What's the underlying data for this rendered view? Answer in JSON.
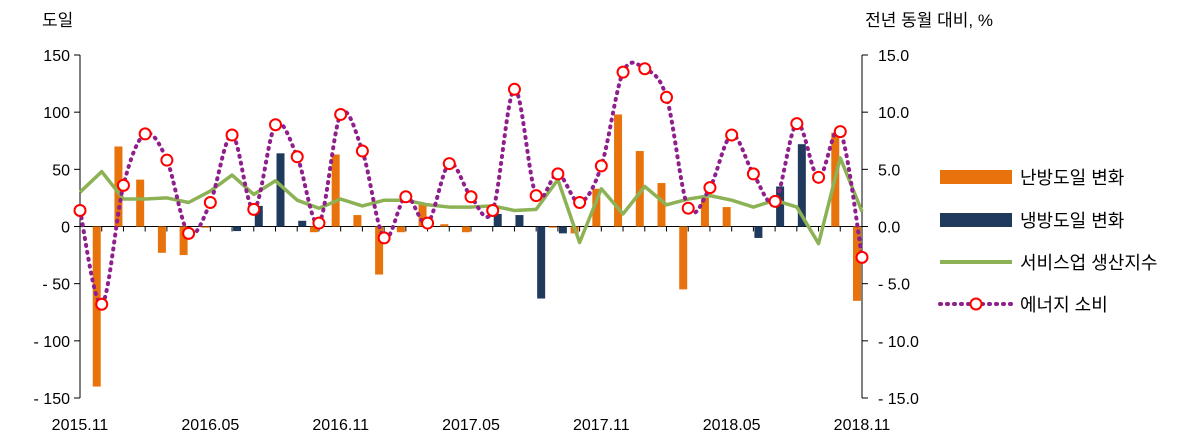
{
  "chart_data": {
    "type": "bar",
    "left_unit": "도일",
    "right_unit": "전년 동월 대비, %",
    "y_left": {
      "min": -150,
      "max": 150,
      "ticks": [
        150,
        100,
        50,
        0,
        -50,
        -100,
        -150
      ],
      "tick_labels": [
        "150",
        "100",
        "50",
        "0",
        "- 50",
        "- 100",
        "- 150"
      ]
    },
    "y_right": {
      "min": -15,
      "max": 15,
      "ticks": [
        15,
        10,
        5,
        0,
        -5,
        -10,
        -15
      ],
      "tick_labels": [
        "15.0",
        "10.0",
        "5.0",
        "0.0",
        "- 5.0",
        "- 10.0",
        "- 15.0"
      ]
    },
    "x_tick_labels": [
      {
        "index": 0,
        "label": "2015.11"
      },
      {
        "index": 6,
        "label": "2016.05"
      },
      {
        "index": 12,
        "label": "2016.11"
      },
      {
        "index": 18,
        "label": "2017.05"
      },
      {
        "index": 24,
        "label": "2017.11"
      },
      {
        "index": 30,
        "label": "2018.05"
      },
      {
        "index": 36,
        "label": "2018.11"
      }
    ],
    "categories": [
      "2015.11",
      "2015.12",
      "2016.01",
      "2016.02",
      "2016.03",
      "2016.04",
      "2016.05",
      "2016.06",
      "2016.07",
      "2016.08",
      "2016.09",
      "2016.10",
      "2016.11",
      "2016.12",
      "2017.01",
      "2017.02",
      "2017.03",
      "2017.04",
      "2017.05",
      "2017.06",
      "2017.07",
      "2017.08",
      "2017.09",
      "2017.10",
      "2017.11",
      "2017.12",
      "2018.01",
      "2018.02",
      "2018.03",
      "2018.04",
      "2018.05",
      "2018.06",
      "2018.07",
      "2018.08",
      "2018.09",
      "2018.10",
      "2018.11"
    ],
    "series": [
      {
        "name": "난방도일 변화",
        "kind": "bar",
        "axis": "left",
        "color": "#E8730C",
        "values": [
          0,
          -140,
          70,
          41,
          -23,
          -25,
          -1,
          0,
          0,
          0,
          0,
          -5,
          63,
          10,
          -42,
          -5,
          19,
          2,
          -5,
          0,
          0,
          0,
          -1,
          -6,
          33,
          98,
          66,
          38,
          -55,
          25,
          17,
          0,
          0,
          0,
          0,
          82,
          -65
        ]
      },
      {
        "name": "냉방도일 변화",
        "kind": "bar",
        "axis": "left",
        "color": "#1F3A5C",
        "values": [
          0,
          0,
          0,
          0,
          0,
          0,
          0,
          -4,
          18,
          64,
          5,
          0,
          0,
          0,
          0,
          0,
          0,
          0,
          0,
          11,
          10,
          -63,
          -6,
          0,
          0,
          0,
          0,
          0,
          0,
          0,
          0,
          -10,
          35,
          72,
          0,
          0,
          0
        ]
      },
      {
        "name": "서비스업 생산지수",
        "kind": "line",
        "axis": "right",
        "color": "#8DB255",
        "values": [
          3.0,
          4.8,
          2.4,
          2.4,
          2.5,
          2.1,
          3.1,
          4.5,
          2.8,
          4.0,
          2.3,
          1.6,
          2.4,
          1.8,
          2.3,
          2.3,
          1.9,
          1.7,
          1.7,
          1.8,
          1.4,
          1.5,
          4.1,
          -1.4,
          3.3,
          1.1,
          3.5,
          1.9,
          2.4,
          2.7,
          2.3,
          1.7,
          2.3,
          1.7,
          -1.5,
          6.0,
          1.3
        ]
      },
      {
        "name": "에너지 소비",
        "kind": "dotted-line-markers",
        "axis": "right",
        "color": "#8E1F8C",
        "marker_color": "#FF0000",
        "values": [
          1.4,
          -6.8,
          3.6,
          8.1,
          5.8,
          -0.6,
          2.1,
          8.0,
          1.5,
          8.9,
          6.1,
          0.3,
          9.8,
          6.6,
          -1.0,
          2.6,
          0.3,
          5.5,
          2.6,
          1.4,
          12.0,
          2.7,
          4.6,
          2.1,
          5.3,
          13.5,
          13.8,
          11.3,
          1.6,
          3.4,
          8.0,
          4.6,
          2.2,
          9.0,
          4.3,
          8.3,
          -2.7
        ]
      }
    ],
    "legend_placement": "right",
    "grid": false
  }
}
